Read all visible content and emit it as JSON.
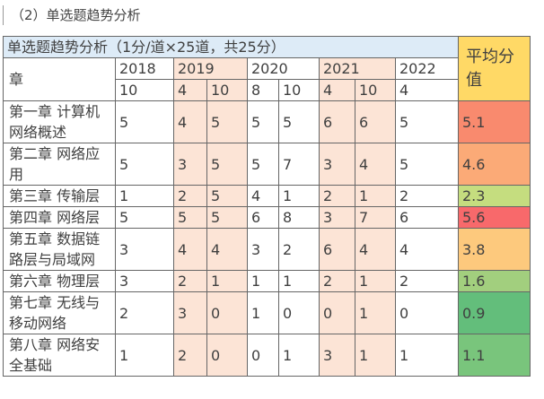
{
  "heading": "（2）单选题趋势分析",
  "table": {
    "title": "单选题趋势分析（1分/道×25道，共25分）",
    "avg_header": "平均分值",
    "chapter_header": "章",
    "title_color": "#ddebf7",
    "avg_header_color": "#ffd966",
    "highlight_color": "#fce4d6",
    "years": [
      {
        "label": "2018",
        "months": [
          10
        ],
        "highlight": false
      },
      {
        "label": "2019",
        "months": [
          4,
          10
        ],
        "highlight": true
      },
      {
        "label": "2020",
        "months": [
          8,
          10
        ],
        "highlight": false
      },
      {
        "label": "2021",
        "months": [
          4,
          10
        ],
        "highlight": true
      },
      {
        "label": "2022",
        "months": [
          4
        ],
        "highlight": false
      }
    ],
    "rows": [
      {
        "chapter": "第一章 计算机网络概述",
        "scores": [
          5,
          4,
          5,
          5,
          5,
          6,
          6,
          5
        ],
        "avg": 5.1,
        "avg_color": "#f98a6e"
      },
      {
        "chapter": "第二章 网络应用",
        "scores": [
          5,
          3,
          5,
          5,
          7,
          3,
          4,
          5
        ],
        "avg": 4.6,
        "avg_color": "#fbaa77"
      },
      {
        "chapter": "第三章 传输层",
        "scores": [
          1,
          2,
          5,
          4,
          1,
          2,
          1,
          2
        ],
        "avg": 2.3,
        "avg_color": "#c5dd7f"
      },
      {
        "chapter": "第四章 网络层",
        "scores": [
          5,
          5,
          5,
          6,
          8,
          3,
          7,
          6
        ],
        "avg": 5.6,
        "avg_color": "#f8696b"
      },
      {
        "chapter": "第五章 数据链路层与局域网",
        "scores": [
          3,
          4,
          4,
          3,
          2,
          6,
          4,
          4
        ],
        "avg": 3.8,
        "avg_color": "#fdc97d"
      },
      {
        "chapter": "第六章 物理层",
        "scores": [
          3,
          2,
          1,
          1,
          1,
          2,
          1,
          2
        ],
        "avg": 1.6,
        "avg_color": "#a2cf7e"
      },
      {
        "chapter": "第七章 无线与移动网络",
        "scores": [
          2,
          3,
          0,
          1,
          0,
          0,
          1,
          0
        ],
        "avg": 0.9,
        "avg_color": "#63be7b"
      },
      {
        "chapter": "第八章 网络安全基础",
        "scores": [
          1,
          2,
          0,
          0,
          1,
          3,
          1,
          1
        ],
        "avg": 1.1,
        "avg_color": "#79c57c"
      }
    ]
  }
}
